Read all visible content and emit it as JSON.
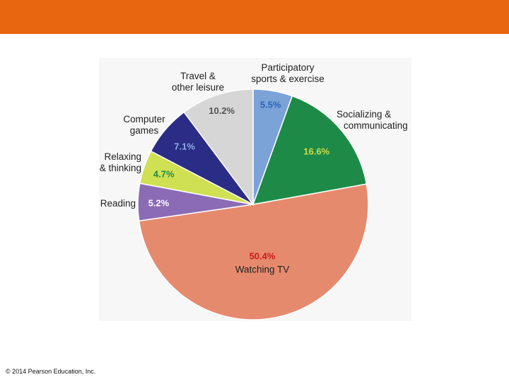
{
  "slide": {
    "header_color": "#e8660f",
    "copyright": "© 2014 Pearson Education, Inc."
  },
  "chart_data": {
    "type": "pie",
    "title": "",
    "start_angle_deg": 0,
    "direction": "clockwise",
    "slices": [
      {
        "key": "sports",
        "label_lines": [
          "Participatory",
          "sports & exercise"
        ],
        "value": 5.5,
        "value_label": "5.5%",
        "color": "#7ba3d8",
        "value_color": "#2e63b8"
      },
      {
        "key": "social",
        "label_lines": [
          "Socializing &",
          "communicating"
        ],
        "value": 16.6,
        "value_label": "16.6%",
        "color": "#1e8a47",
        "value_color": "#c9dc4a"
      },
      {
        "key": "tv",
        "label_lines": [
          "Watching TV"
        ],
        "value": 50.4,
        "value_label": "50.4%",
        "color": "#e68a6e",
        "value_color": "#d01818"
      },
      {
        "key": "reading",
        "label_lines": [
          "Reading"
        ],
        "value": 5.2,
        "value_label": "5.2%",
        "color": "#8b6bb6",
        "value_color": "#ffffff"
      },
      {
        "key": "relaxing",
        "label_lines": [
          "Relaxing",
          "& thinking"
        ],
        "value": 4.7,
        "value_label": "4.7%",
        "color": "#cfe052",
        "value_color": "#1e8a47"
      },
      {
        "key": "computer",
        "label_lines": [
          "Computer",
          "games"
        ],
        "value": 7.1,
        "value_label": "7.1%",
        "color": "#2a2c86",
        "value_color": "#8faee0"
      },
      {
        "key": "travel",
        "label_lines": [
          "Travel &",
          "other leisure"
        ],
        "value": 10.2,
        "value_label": "10.2%",
        "color": "#d6d6d6",
        "value_color": "#555555"
      }
    ]
  }
}
